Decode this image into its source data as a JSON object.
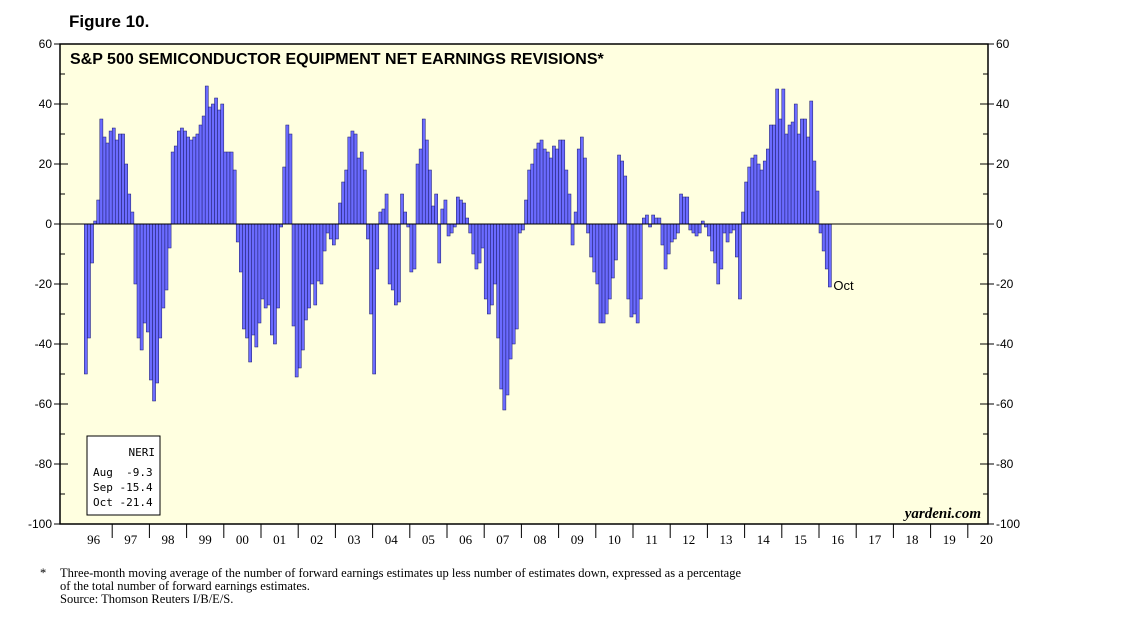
{
  "figure_label": "Figure 10.",
  "footnote": {
    "marker": "*",
    "lines": [
      "Three-month moving average of the number of forward earnings estimates up less number of estimates down, expressed as a percentage",
      "of the total number of forward earnings estimates.",
      "Source: Thomson Reuters I/B/E/S."
    ]
  },
  "chart_data": {
    "type": "bar",
    "title": "S&P 500 SEMICONDUCTOR EQUIPMENT NET EARNINGS REVISIONS*",
    "ylim": [
      -100,
      60
    ],
    "yticks": [
      -100,
      -80,
      -60,
      -40,
      -20,
      0,
      20,
      40,
      60
    ],
    "yticks_left": [
      "60",
      "40",
      "20",
      "0",
      "-20",
      "-40",
      "-60",
      "-80",
      "-100"
    ],
    "yticks_right": [
      "60",
      "40",
      "20",
      "0",
      "-20",
      "-40",
      "-60",
      "-80",
      "-100"
    ],
    "x_year_labels": [
      "96",
      "97",
      "98",
      "99",
      "00",
      "01",
      "02",
      "03",
      "04",
      "05",
      "06",
      "07",
      "08",
      "09",
      "10",
      "11",
      "12",
      "13",
      "14",
      "15",
      "16",
      "17",
      "18",
      "19",
      "20"
    ],
    "start_year": 1996,
    "bar_color": "#6b6bff",
    "watermark": "yardeni.com",
    "annotation": "Oct",
    "legend": {
      "title": "NERI",
      "rows": [
        "Aug  -9.3",
        "Sep -15.4",
        "Oct -21.4"
      ],
      "placement": "bottom-left"
    },
    "series": [
      {
        "values": [
          -50,
          -38,
          -13,
          1,
          8,
          35,
          29,
          27,
          31,
          32,
          28,
          30,
          30,
          20,
          10,
          4,
          -20,
          -38,
          -42,
          -33,
          -36,
          -52,
          -59,
          -53,
          -38,
          -28,
          -22,
          -8,
          24,
          26,
          31,
          32,
          31,
          29,
          28,
          29,
          30,
          33,
          36,
          46,
          39,
          40,
          42,
          38,
          40,
          24,
          24,
          24,
          18,
          -6,
          -16,
          -35,
          -38,
          -46,
          -37,
          -41,
          -33,
          -25,
          -28,
          -27,
          -37,
          -40,
          -28,
          -1,
          19,
          33,
          30,
          -34,
          -51,
          -48,
          -42,
          -32,
          -28,
          -20,
          -27,
          -19,
          -20,
          -9,
          -3,
          -5,
          -7,
          -5,
          7,
          14,
          18,
          29,
          31,
          30,
          22,
          24,
          18,
          -5,
          -30,
          -50,
          -15,
          4,
          5,
          10,
          -20,
          -22,
          -27,
          -26,
          10,
          4,
          -1,
          -16,
          -15,
          20,
          25,
          35,
          28,
          18,
          6,
          10,
          -13,
          5,
          8,
          -4,
          -3,
          -1,
          9,
          8,
          7,
          2,
          -3,
          -10,
          -15,
          -13,
          -8,
          -25,
          -30,
          -27,
          -20,
          -38,
          -55,
          -62,
          -57,
          -45,
          -40,
          -35,
          -3,
          -2,
          8,
          18,
          20,
          25,
          27,
          28,
          25,
          24,
          22,
          26,
          25,
          28,
          28,
          18,
          10,
          -7,
          4,
          25,
          29,
          22,
          -3,
          -11,
          -16,
          -20,
          -33,
          -33,
          -30,
          -25,
          -18,
          -12,
          23,
          21,
          16,
          -25,
          -31,
          -30,
          -33,
          -25,
          2,
          3,
          -1,
          3,
          2,
          2,
          -7,
          -15,
          -10,
          -6,
          -5,
          -3,
          10,
          9,
          9,
          -2,
          -3,
          -4,
          -3,
          1,
          -1,
          -4,
          -9,
          -13,
          -20,
          -15,
          -3,
          -6,
          -3,
          -2,
          -11,
          -25,
          4,
          14,
          19,
          22,
          23,
          20,
          18,
          21,
          25,
          33,
          33,
          45,
          35,
          45,
          30,
          33,
          34,
          40,
          30,
          35,
          35,
          29,
          41,
          21,
          11,
          -3,
          -9,
          -15,
          -21
        ]
      }
    ]
  }
}
